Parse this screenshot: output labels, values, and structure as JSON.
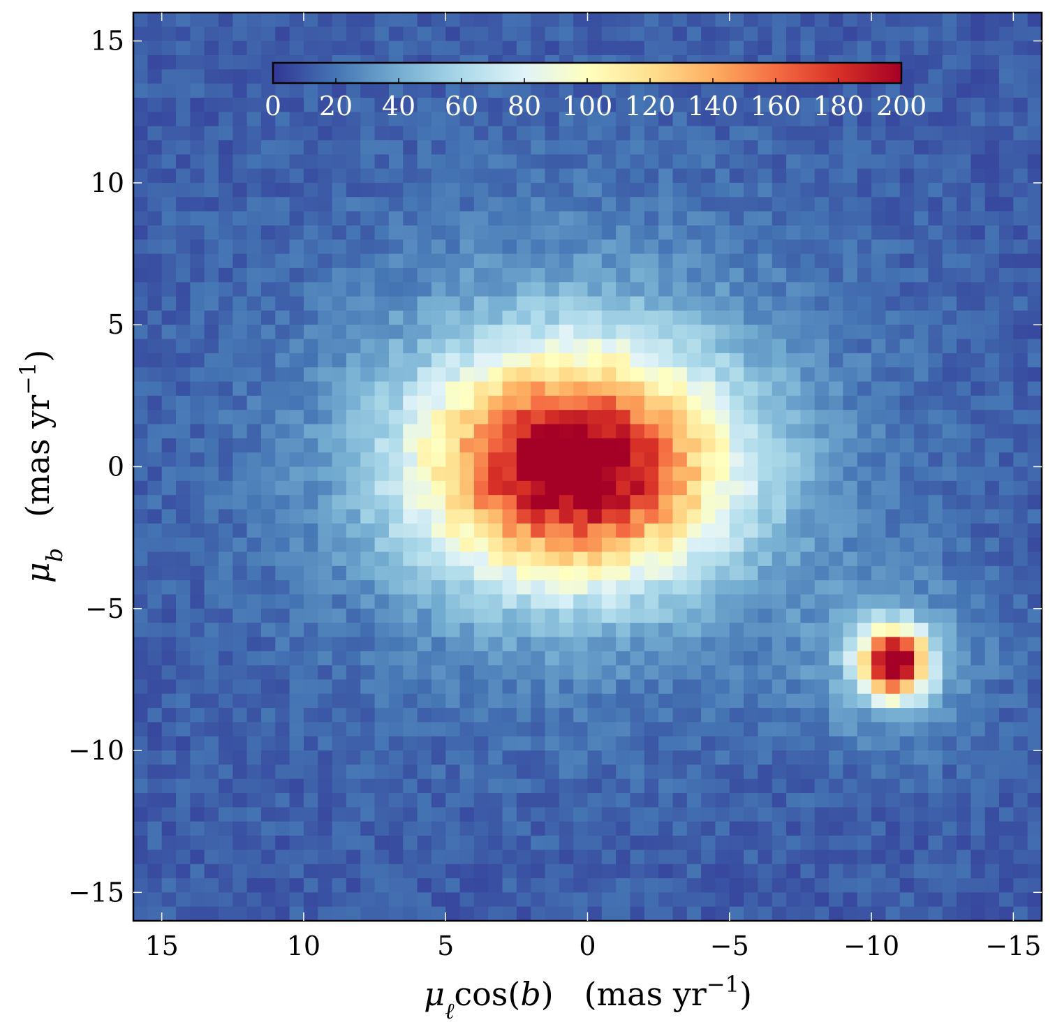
{
  "chart_data": {
    "type": "heatmap",
    "title": "",
    "xlabel": "μℓcos(b)   (mas yr−1)",
    "ylabel": "μb   (mas yr−1)",
    "xlim": [
      16,
      -16
    ],
    "ylim": [
      -16,
      16
    ],
    "x_ticks": [
      15,
      10,
      5,
      0,
      -5,
      -10,
      -15
    ],
    "y_ticks": [
      15,
      10,
      5,
      0,
      -5,
      -10,
      -15
    ],
    "x_tick_labels": [
      "15",
      "10",
      "5",
      "0",
      "−5",
      "−10",
      "−15"
    ],
    "y_tick_labels": [
      "15",
      "10",
      "5",
      "0",
      "−5",
      "−10",
      "−15"
    ],
    "bin_width": 0.5,
    "grid": false,
    "colorbar": {
      "orientation": "horizontal",
      "placement": "top-inside",
      "min": 0,
      "max": 200,
      "ticks": [
        0,
        20,
        40,
        60,
        80,
        100,
        120,
        140,
        160,
        180,
        200
      ],
      "tick_labels": [
        "0",
        "20",
        "40",
        "60",
        "80",
        "100",
        "120",
        "140",
        "160",
        "180",
        "200"
      ],
      "colormap": "RdYlBu_r",
      "colors": [
        "#313695",
        "#4575b4",
        "#74add1",
        "#abd9e9",
        "#e0f3f8",
        "#ffffbf",
        "#fee090",
        "#fdae61",
        "#f46d43",
        "#d73027",
        "#a50026"
      ]
    },
    "components": [
      {
        "name": "",
        "center": [
          0.5,
          0.0
        ],
        "sigma_x": 3.6,
        "sigma_y": 2.6,
        "peak": 175
      },
      {
        "name": "",
        "center": [
          -10.8,
          -6.9
        ],
        "sigma_x": 0.8,
        "sigma_y": 0.8,
        "peak": 195
      },
      {
        "name": "",
        "center": [
          -10.8,
          -6.9
        ],
        "sigma_x": 2.2,
        "sigma_y": 2.0,
        "peak": 30
      },
      {
        "name": "",
        "center": [
          0.5,
          0.5
        ],
        "sigma_x": 6.5,
        "sigma_y": 5.5,
        "peak": 35
      }
    ],
    "background_counts": 12,
    "noise_amplitude": 6
  }
}
